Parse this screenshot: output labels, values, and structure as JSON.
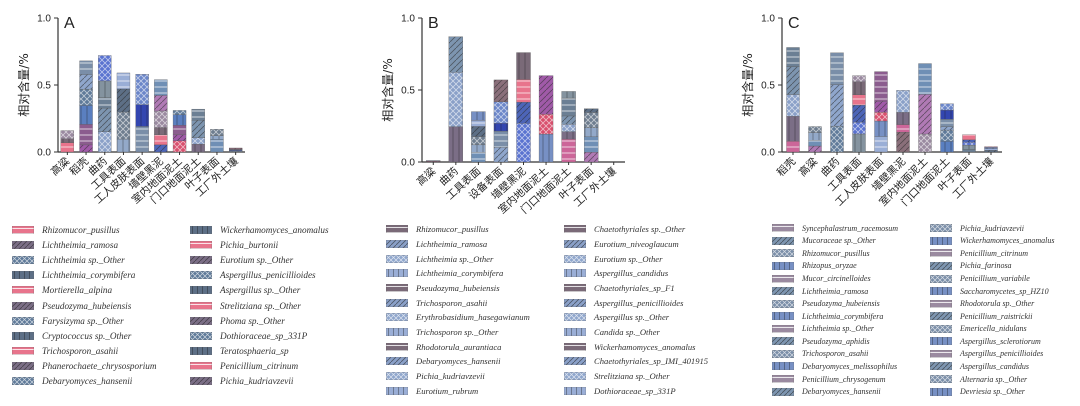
{
  "chart_data": [
    {
      "type": "bar",
      "stacked": true,
      "panel_label": "A",
      "ylabel": "相对含量/%",
      "ylim": [
        0,
        1.0
      ],
      "yticks": [
        "0.0",
        "0.5",
        "1.0"
      ],
      "categories": [
        "高粱",
        "稻壳",
        "曲药",
        "工具表面",
        "工人皮肤表面",
        "墙壁黑泥",
        "室内地面泥土",
        "门口地面泥土",
        "叶子表面",
        "工厂外土壤"
      ],
      "totals": [
        0.16,
        0.68,
        0.72,
        0.59,
        0.58,
        0.54,
        0.31,
        0.32,
        0.17,
        0.03
      ],
      "legend": [
        "Rhizomucor_pusillus",
        "Lichtheimia_ramosa",
        "Lichtheimia sp._Other",
        "Lichtheimia_corymbifera",
        "Mortierella_alpina",
        "Pseudozyma_hubeiensis",
        "Farysizyma sp._Other",
        "Cryptococcus sp._Other",
        "Trichosporon_asahii",
        "Phanerochaete_chrysosporium",
        "Debaryomyces_hansenii",
        "Wickerhamomyces_anomalus",
        "Pichia_burtonii",
        "Eurotium sp._Other",
        "Aspergillus_penicillioides",
        "Aspergillus sp._Other",
        "Strelitziana sp._Other",
        "Phoma sp._Other",
        "Dothioraceae_sp_331P",
        "Teratosphaeria_sp",
        "Penicillium_citrinum",
        "Pichia_kudriavzevii"
      ]
    },
    {
      "type": "bar",
      "stacked": true,
      "panel_label": "B",
      "ylabel": "相对含量/%",
      "ylim": [
        0,
        1.0
      ],
      "yticks": [
        "0.0",
        "0.5",
        "1.0"
      ],
      "categories": [
        "高粱",
        "曲药",
        "工具表面",
        "设备表面",
        "墙壁黑泥",
        "室内地面泥土",
        "门口地面泥土",
        "叶子表面",
        "工厂外土壤"
      ],
      "totals": [
        0.01,
        0.87,
        0.35,
        0.57,
        0.76,
        0.6,
        0.49,
        0.37,
        0.0
      ],
      "legend": [
        "Rhizomucor_pusillus",
        "Lichtheimia_ramosa",
        "Lichtheimia sp._Other",
        "Lichtheimia_corymbifera",
        "Pseudozyma_hubeiensis",
        "Trichosporon_asahii",
        "Erythrobasidium_hasegawianum",
        "Trichosporon sp._Other",
        "Rhodotorula_aurantiaca",
        "Debaryomyces_hansenii",
        "Pichia_kudriavzevii",
        "Eurotium_rubrum",
        "Chaetothyriales sp._Other",
        "Eurotium_niveoglaucum",
        "Eurotium sp._Other",
        "Aspergillus_candidus",
        "Chaetothyriales_sp_F1",
        "Aspergillus_penicillioides",
        "Aspergillus sp._Other",
        "Candida sp._Other",
        "Wickerhamomyces_anomalus",
        "Chaetothyriales_sp_IMI_401915",
        "Strelitziana sp._Other",
        "Dothioraceae_sp_331P"
      ]
    },
    {
      "type": "bar",
      "stacked": true,
      "panel_label": "C",
      "ylabel": "相对含量/%",
      "ylim": [
        0,
        1.0
      ],
      "yticks": [
        "0.0",
        "0.5",
        "1.0"
      ],
      "categories": [
        "稻壳",
        "高粱",
        "曲药",
        "工具表面",
        "工人皮肤表面",
        "墙壁黑泥",
        "室内地面泥土",
        "门口地面泥土",
        "叶子表面",
        "工厂外土壤"
      ],
      "totals": [
        0.78,
        0.19,
        0.74,
        0.57,
        0.6,
        0.46,
        0.66,
        0.36,
        0.13,
        0.04
      ],
      "legend": [
        "Syncephalastrum_racemosum",
        "Mucoraceae sp._Other",
        "Rhizomucor_pusillus",
        "Rhizopus_oryzae",
        "Mucor_circinelloides",
        "Lichtheimia_ramosa",
        "Pseudozyma_hubeiensis",
        "Lichtheimia_corymbifera",
        "Lichtheimia sp._Other",
        "Pseudozyma_aphidis",
        "Trichosporon_asahii",
        "Debaryomyces_melissophilus",
        "Penicillium_chrysogenum",
        "Debaryomyces_hansenii",
        "Pichia_kudriavzevii",
        "Wickerhamomyces_anomalus",
        "Penicillium_citrinum",
        "Pichia_farinosa",
        "Penicillium_variabile",
        "Saccharomycetes_sp_HZ10",
        "Rhodotorula sp._Other",
        "Penicillium_raistrickii",
        "Emericella_nidulans",
        "Aspergillus_sclerotiorum",
        "Aspergillus_penicillioides",
        "Aspergillus_candidus",
        "Alternaria sp._Other",
        "Devriesia sp._Other"
      ]
    }
  ],
  "palette": [
    "#e8748c",
    "#8a6f7a",
    "#d9506e",
    "#7a6a78",
    "#cc6699",
    "#a05aa8",
    "#9a8aa0",
    "#7b6e86",
    "#8b5c8e",
    "#b07ab5",
    "#8aa0c8",
    "#5a7fc0",
    "#6f8fb5",
    "#7d95b0",
    "#5f7a99",
    "#93a9c9",
    "#6b7f94",
    "#8fa6cc",
    "#6e7d8f",
    "#84939f",
    "#7a8ea8",
    "#5d6f86",
    "#5a73d0",
    "#3346b0",
    "#9aaed6",
    "#4d65b8",
    "#6b86c9",
    "#7790c4"
  ],
  "axis_color": "#333333"
}
